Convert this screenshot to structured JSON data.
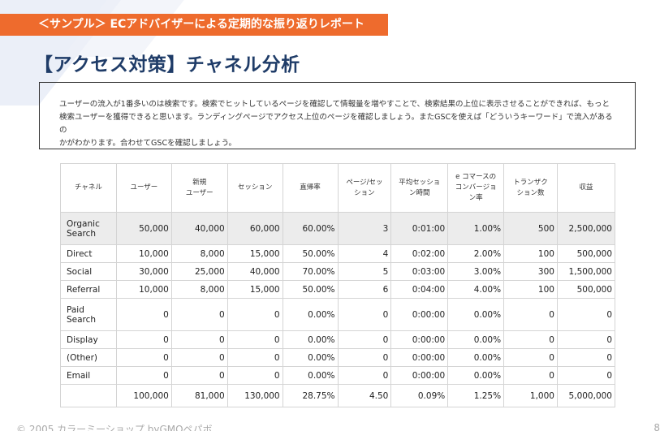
{
  "banner": "＜サンプル＞ ECアドバイザーによる定期的な振り返りレポート",
  "title": "【アクセス対策】チャネル分析",
  "description": {
    "line1": "ユーザーの流入が1番多いのは検索です。検索でヒットしているページを確認して情報量を増やすことで、検索結果の上位に表示させることができれば、もっと",
    "line2": "検索ユーザーを獲得できると思います。ランディングページでアクセス上位のページを確認しましょう。またGSCを使えば「どういうキーワード」で流入があるの",
    "line3": "かがわかります。合わせてGSCを確認しましょう。"
  },
  "table": {
    "headers": [
      "チャネル",
      "ユーザー",
      "新規\nユーザー",
      "セッション",
      "直帰率",
      "ページ/セッ\nション",
      "平均セッショ\nン時間",
      "e コマースの\nコンバージョ\nン率",
      "トランザク\nション数",
      "収益"
    ],
    "rows": [
      [
        "Organic\nSearch",
        "50,000",
        "40,000",
        "60,000",
        "60.00%",
        "3",
        "0:01:00",
        "1.00%",
        "500",
        "2,500,000"
      ],
      [
        "Direct",
        "10,000",
        "8,000",
        "15,000",
        "50.00%",
        "4",
        "0:02:00",
        "2.00%",
        "100",
        "500,000"
      ],
      [
        "Social",
        "30,000",
        "25,000",
        "40,000",
        "70.00%",
        "5",
        "0:03:00",
        "3.00%",
        "300",
        "1,500,000"
      ],
      [
        "Referral",
        "10,000",
        "8,000",
        "15,000",
        "50.00%",
        "6",
        "0:04:00",
        "4.00%",
        "100",
        "500,000"
      ],
      [
        "Paid\nSearch",
        "0",
        "0",
        "0",
        "0.00%",
        "0",
        "0:00:00",
        "0.00%",
        "0",
        "0"
      ],
      [
        "Display",
        "0",
        "0",
        "0",
        "0.00%",
        "0",
        "0:00:00",
        "0.00%",
        "0",
        "0"
      ],
      [
        "(Other)",
        "0",
        "0",
        "0",
        "0.00%",
        "0",
        "0:00:00",
        "0.00%",
        "0",
        "0"
      ],
      [
        "Email",
        "0",
        "0",
        "0",
        "0.00%",
        "0",
        "0:00:00",
        "0.00%",
        "0",
        "0"
      ]
    ],
    "total": [
      "",
      "100,000",
      "81,000",
      "130,000",
      "28.75%",
      "4.50",
      "0.09%",
      "1.25%",
      "1,000",
      "5,000,000"
    ]
  },
  "footer": "© 2005 カラーミーショップ byGMOペパボ",
  "page_number": "8",
  "colors": {
    "banner": "#ee6b2d",
    "title": "#1f3c68",
    "shade": "#ececec"
  }
}
